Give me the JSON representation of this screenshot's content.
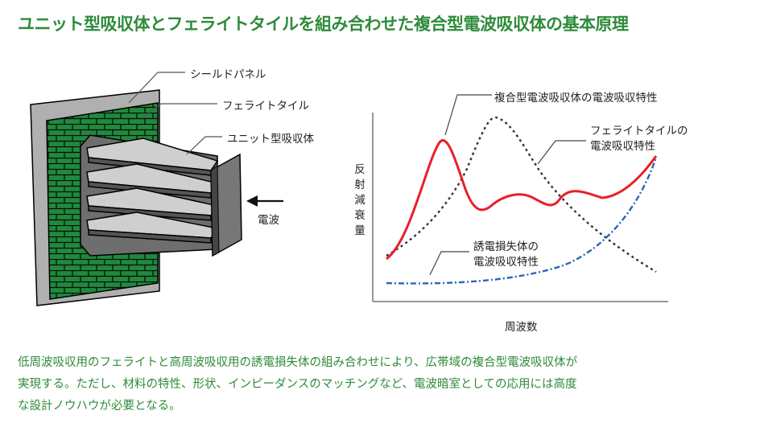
{
  "title": "ユニット型吸収体とフェライトタイルを組み合わせた複合型電波吸収体の基本原理",
  "device": {
    "shield_panel": "シールドパネル",
    "ferrite_tile": "フェライトタイル",
    "unit_absorber": "ユニット型吸収体",
    "radio_wave": "電波"
  },
  "chart": {
    "ylabel": "反射減衰量",
    "xlabel": "周波数",
    "composite_label": "複合型電波吸収体の電波吸収特性",
    "ferrite_label_1": "フェライトタイルの",
    "ferrite_label_2": "電波吸収特性",
    "dielectric_label_1": "誘電損失体の",
    "dielectric_label_2": "電波吸収特性"
  },
  "chart_data": {
    "type": "line",
    "xlabel": "周波数",
    "ylabel": "反射減衰量",
    "series": [
      {
        "name": "複合型電波吸収体の電波吸収特性",
        "color": "#e8202a",
        "style": "solid"
      },
      {
        "name": "フェライトタイルの電波吸収特性",
        "color": "#333333",
        "style": "dotted"
      },
      {
        "name": "誘電損失体の電波吸収特性",
        "color": "#2a66b8",
        "style": "dash-dot"
      }
    ]
  },
  "caption": {
    "line1": "低周波吸収用のフェライトと高周波吸収用の誘電損失体の組み合わせにより、広帯域の複合型電波吸収体が",
    "line2": "実現する。ただし、材料の特性、形状、インピーダンスのマッチングなど、電波暗室としての応用には高度",
    "line3": "な設計ノウハウが必要となる。"
  },
  "colors": {
    "title_green": "#2e8b3a",
    "brick_green": "#1f8a3c",
    "red_curve": "#e8202a",
    "blue_curve": "#2a66b8"
  }
}
